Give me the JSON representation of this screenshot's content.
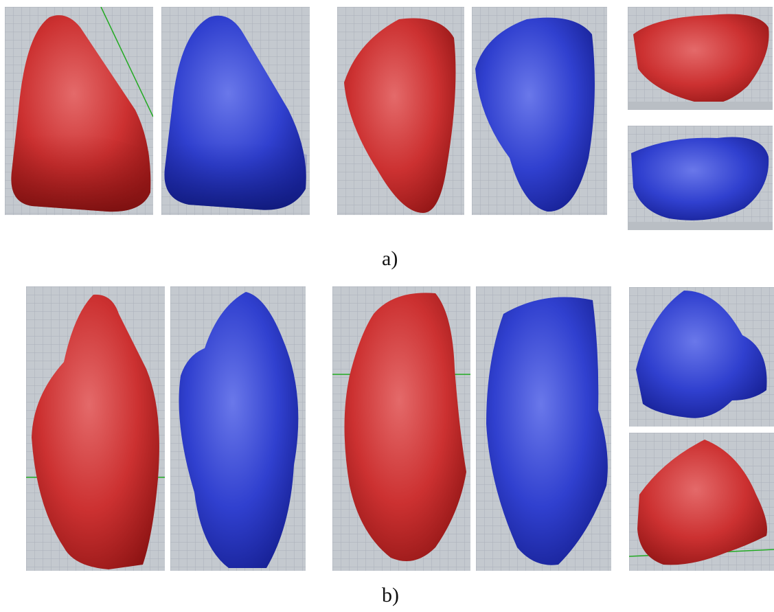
{
  "figure": {
    "row_a": {
      "label": "a)"
    },
    "row_b": {
      "label": "b)"
    }
  },
  "colors": {
    "red_model": "#c42a2a",
    "blue_model": "#2a38c2",
    "viewport_background": "#c4c9cf",
    "grid_line": "#aab0b8",
    "axis_line": "#22aa22"
  },
  "panels": [
    {
      "name": "a-front-red",
      "model": "red",
      "view": "front"
    },
    {
      "name": "a-front-blue",
      "model": "blue",
      "view": "front"
    },
    {
      "name": "a-back-red",
      "model": "red",
      "view": "back"
    },
    {
      "name": "a-back-blue",
      "model": "blue",
      "view": "back"
    },
    {
      "name": "a-side-red",
      "model": "red",
      "view": "side"
    },
    {
      "name": "a-side-blue",
      "model": "blue",
      "view": "side"
    },
    {
      "name": "b-front-red",
      "model": "red",
      "view": "front"
    },
    {
      "name": "b-front-blue",
      "model": "blue",
      "view": "front"
    },
    {
      "name": "b-back-red",
      "model": "red",
      "view": "back"
    },
    {
      "name": "b-back-blue",
      "model": "blue",
      "view": "back"
    },
    {
      "name": "b-side-blue",
      "model": "blue",
      "view": "side"
    },
    {
      "name": "b-side-red",
      "model": "red",
      "view": "side"
    }
  ]
}
